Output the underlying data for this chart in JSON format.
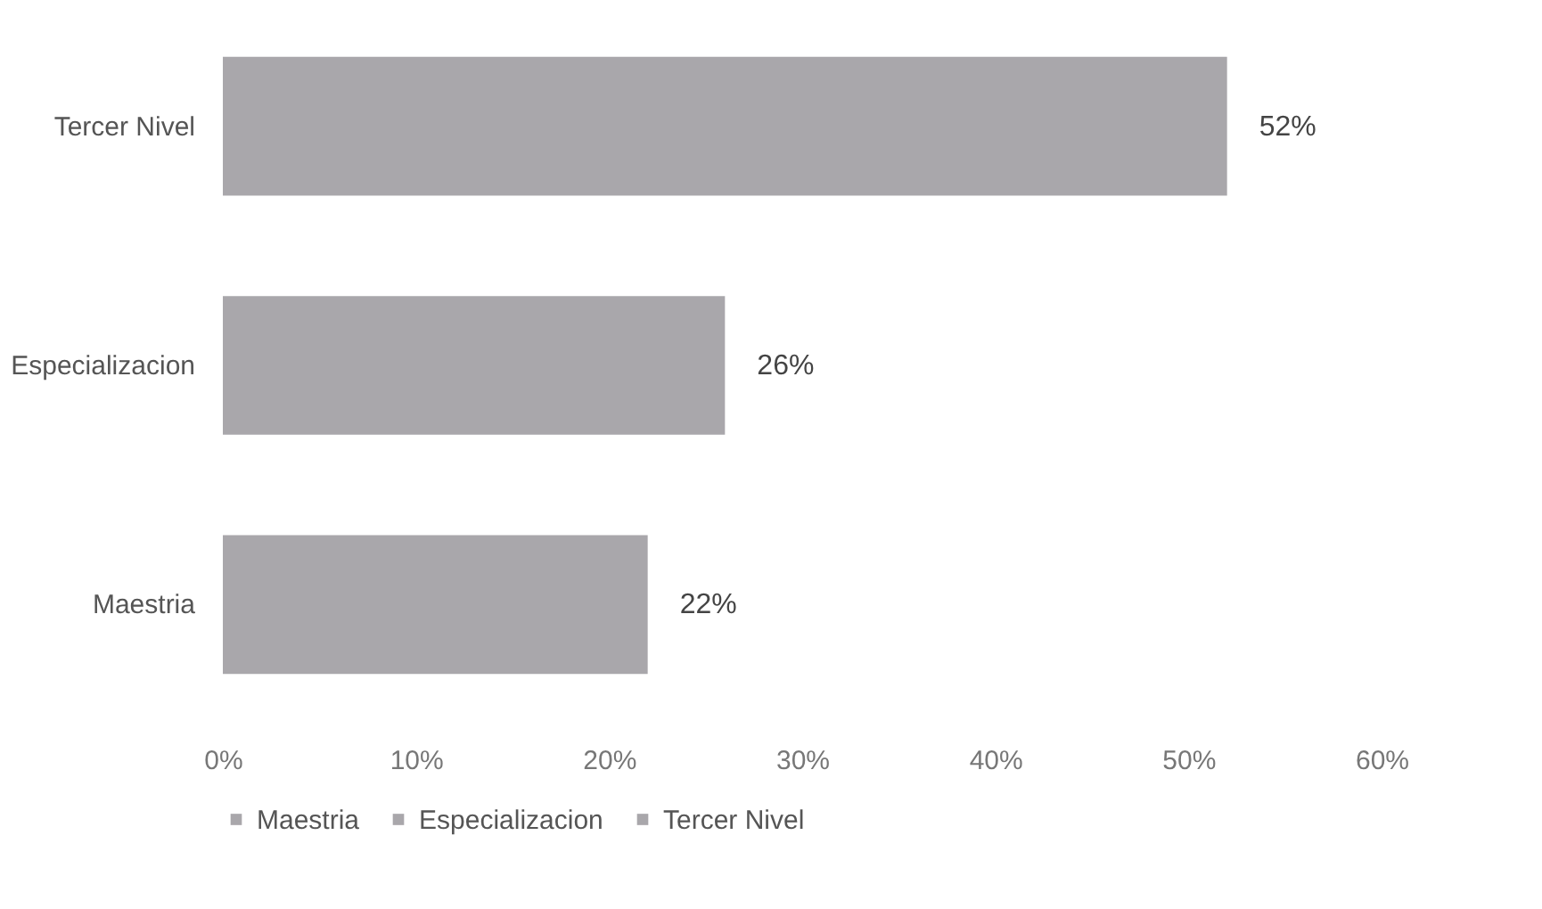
{
  "chart_data": {
    "type": "bar",
    "orientation": "horizontal",
    "categories": [
      "Tercer Nivel",
      "Especializacion",
      "Maestria"
    ],
    "series": [
      {
        "name": "Maestria",
        "color": "#a9a7ab",
        "values": [
          null,
          null,
          22
        ],
        "value_labels": [
          null,
          null,
          "22%"
        ]
      },
      {
        "name": "Especializacion",
        "color": "#a9a7ab",
        "values": [
          null,
          26,
          null
        ],
        "value_labels": [
          null,
          "26%",
          null
        ]
      },
      {
        "name": "Tercer Nivel",
        "color": "#a9a7ab",
        "values": [
          52,
          null,
          null
        ],
        "value_labels": [
          "52%",
          null,
          null
        ]
      }
    ],
    "xlim": [
      0,
      60
    ],
    "xticks": [
      {
        "value": 0,
        "label": "0%"
      },
      {
        "value": 10,
        "label": "10%"
      },
      {
        "value": 20,
        "label": "20%"
      },
      {
        "value": 30,
        "label": "30%"
      },
      {
        "value": 40,
        "label": "40%"
      },
      {
        "value": 50,
        "label": "50%"
      },
      {
        "value": 60,
        "label": "60%"
      }
    ],
    "legend": "bottom"
  }
}
